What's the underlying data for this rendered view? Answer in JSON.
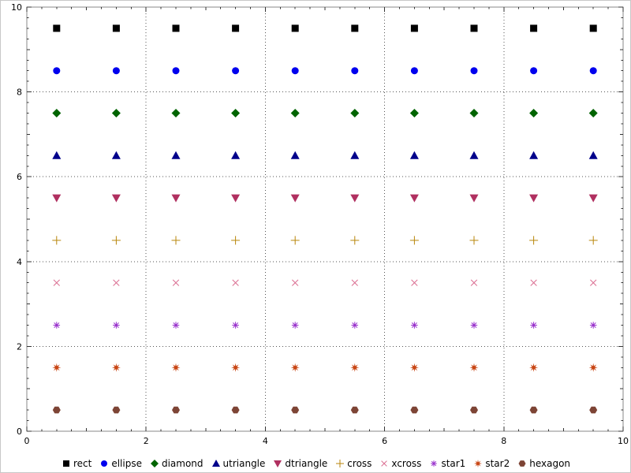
{
  "chart_data": {
    "type": "scatter",
    "title": "",
    "xlabel": "",
    "ylabel": "",
    "xlim": [
      0,
      10
    ],
    "ylim": [
      0,
      10
    ],
    "x_ticks": [
      0,
      2,
      4,
      6,
      8,
      10
    ],
    "y_ticks": [
      0,
      2,
      4,
      6,
      8,
      10
    ],
    "minor_tick_step": 0.25,
    "grid": "dotted",
    "legend_position": "bottom",
    "x": [
      0.5,
      1.5,
      2.5,
      3.5,
      4.5,
      5.5,
      6.5,
      7.5,
      8.5,
      9.5
    ],
    "series": [
      {
        "name": "rect",
        "marker": "rect",
        "color": "#000000",
        "y": 9.5
      },
      {
        "name": "ellipse",
        "marker": "ellipse",
        "color": "#0000ee",
        "y": 8.5
      },
      {
        "name": "diamond",
        "marker": "diamond",
        "color": "#006400",
        "y": 7.5
      },
      {
        "name": "utriangle",
        "marker": "utriangle",
        "color": "#00008b",
        "y": 6.5
      },
      {
        "name": "dtriangle",
        "marker": "dtriangle",
        "color": "#b03060",
        "y": 5.5
      },
      {
        "name": "cross",
        "marker": "cross",
        "color": "#b8860b",
        "y": 4.5
      },
      {
        "name": "xcross",
        "marker": "xcross",
        "color": "#db7093",
        "y": 3.5
      },
      {
        "name": "star1",
        "marker": "star1",
        "color": "#9932cc",
        "y": 2.5
      },
      {
        "name": "star2",
        "marker": "star2",
        "color": "#c84513",
        "y": 1.5
      },
      {
        "name": "hexagon",
        "marker": "hexagon",
        "color": "#7d4435",
        "y": 0.5
      }
    ]
  }
}
